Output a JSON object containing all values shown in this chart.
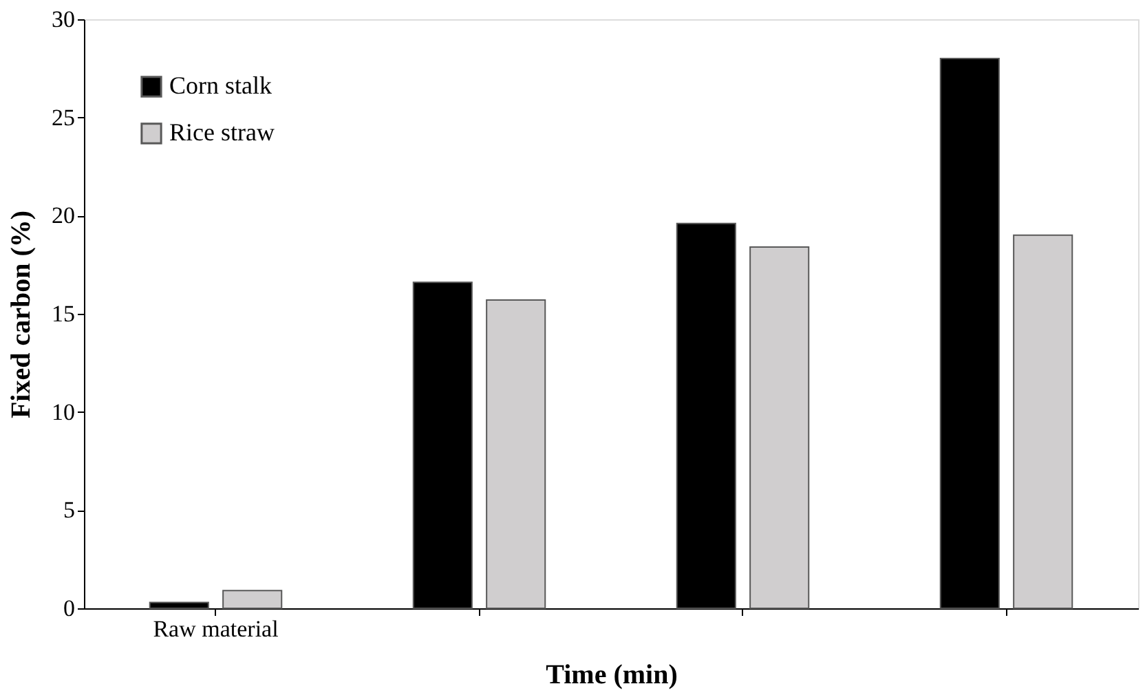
{
  "chart_data": {
    "type": "bar",
    "xlabel": "Time (min)",
    "ylabel": "Fixed carbon (%)",
    "categories": [
      "Raw material",
      null,
      null,
      null
    ],
    "series": [
      {
        "name": "Corn stalk",
        "color": "#000000",
        "values": [
          0.3,
          16.6,
          19.6,
          28.0
        ]
      },
      {
        "name": "Rice straw",
        "color": "#d0cecf",
        "values": [
          0.9,
          15.7,
          18.4,
          19.0
        ]
      }
    ],
    "ylim": [
      0,
      30
    ],
    "yticks": [
      0,
      5,
      10,
      15,
      20,
      25,
      30
    ],
    "grid": false,
    "legend": "top left"
  }
}
